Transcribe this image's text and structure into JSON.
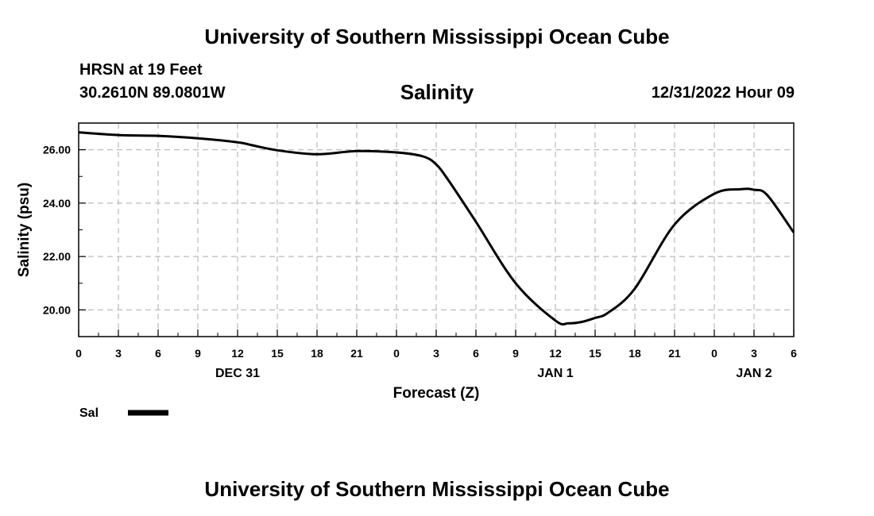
{
  "header": {
    "org_title": "University of Southern Mississippi Ocean Cube",
    "station": "HRSN at 19 Feet",
    "coords": "30.2610N  89.0801W",
    "timestamp": "12/31/2022 Hour 09"
  },
  "footer": {
    "org_title": "University of Southern Mississippi Ocean Cube"
  },
  "chart_data": {
    "type": "line",
    "title": "Salinity",
    "xlabel": "Forecast (Z)",
    "ylabel": "Salinity (psu)",
    "ylim": [
      19.0,
      27.0
    ],
    "xlim": [
      0,
      54
    ],
    "yticks": [
      20.0,
      22.0,
      24.0,
      26.0
    ],
    "ytick_labels": [
      "20.00",
      "22.00",
      "24.00",
      "26.00"
    ],
    "xtick_labels": [
      "0",
      "3",
      "6",
      "9",
      "12",
      "15",
      "18",
      "21",
      "0",
      "3",
      "6",
      "9",
      "12",
      "15",
      "18",
      "21",
      "0",
      "3",
      "6"
    ],
    "date_labels": [
      {
        "text": "DEC 31",
        "hour": 12
      },
      {
        "text": "JAN 1",
        "hour": 36
      },
      {
        "text": "JAN 2",
        "hour": 51
      }
    ],
    "grid": true,
    "legend": [
      {
        "name": "Sal"
      }
    ],
    "series": [
      {
        "name": "Sal",
        "color": "#000000",
        "x": [
          0,
          3,
          6,
          9,
          12,
          13,
          15,
          18,
          21,
          24,
          26,
          27,
          28,
          30,
          33,
          36,
          37,
          38,
          39,
          40,
          42,
          45,
          48,
          50,
          51,
          52,
          54
        ],
        "y": [
          26.65,
          26.55,
          26.52,
          26.43,
          26.28,
          26.18,
          25.98,
          25.83,
          25.95,
          25.9,
          25.75,
          25.45,
          24.8,
          23.3,
          21.0,
          19.6,
          19.5,
          19.55,
          19.7,
          19.9,
          20.8,
          23.2,
          24.35,
          24.52,
          24.5,
          24.3,
          22.9
        ]
      }
    ]
  }
}
